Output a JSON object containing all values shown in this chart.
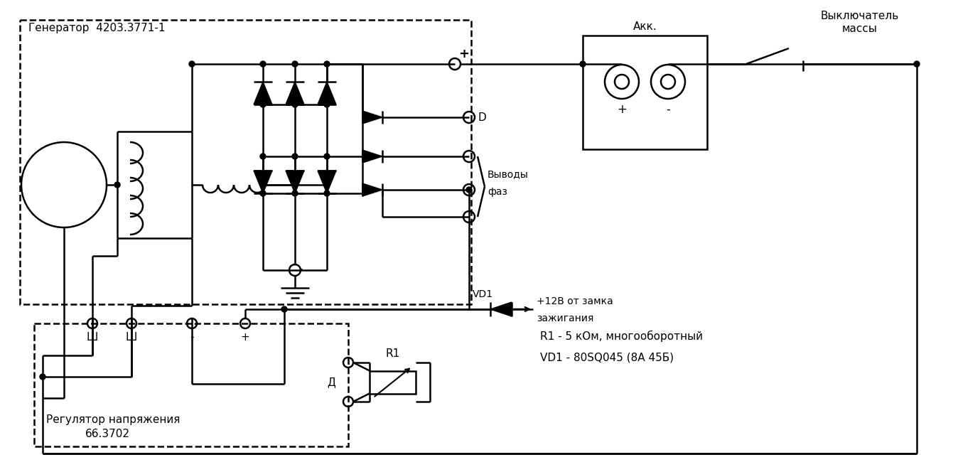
{
  "bg": "#ffffff",
  "lc": "#000000",
  "lw": 1.8,
  "gen_label": "Генератор  4203.3771-1",
  "reg_label1": "Регулятор напряжения",
  "reg_label2": "66.3702",
  "akk_label": "Акк.",
  "sw_label1": "Выключатель",
  "sw_label2": "массы",
  "phase_label1": "Выводы",
  "phase_label2": "фаз",
  "D_label": "D",
  "R1_label": "R1",
  "VD1_label": "VD1",
  "plus_label": "+",
  "minus_label": "-",
  "Sh_label": "Ш",
  "D_conn_label": "Д",
  "r1_desc": "R1 - 5 кОм, многооборотный",
  "vd1_desc": "VD1 - 80SQ045 (8А 45Б)",
  "v12_label1": "+12В от замка",
  "v12_label2": "зажигания"
}
